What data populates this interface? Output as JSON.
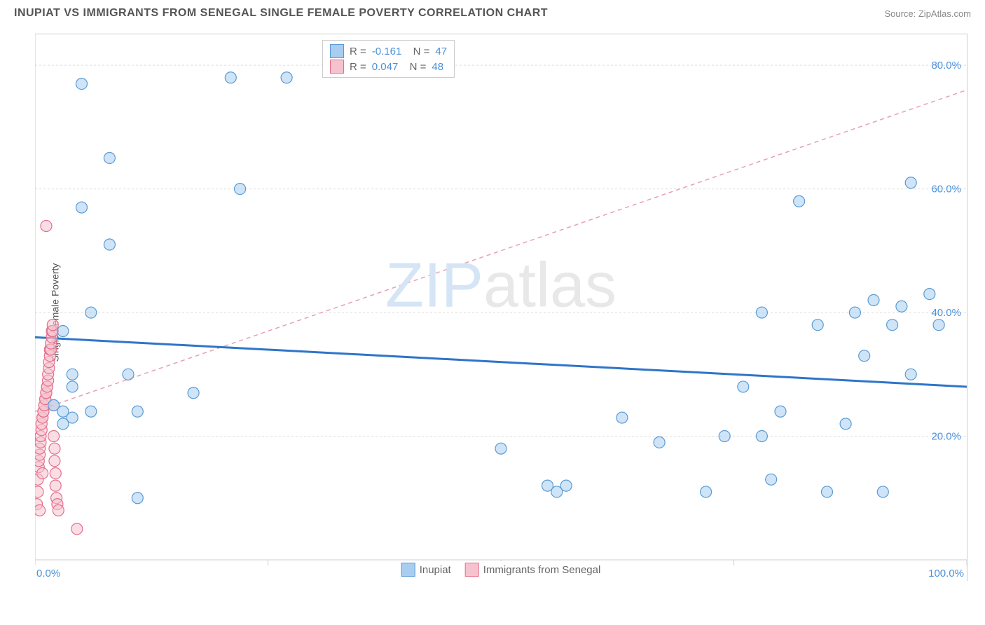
{
  "title": "INUPIAT VS IMMIGRANTS FROM SENEGAL SINGLE FEMALE POVERTY CORRELATION CHART",
  "source": "Source: ZipAtlas.com",
  "ylabel": "Single Female Poverty",
  "watermark_a": "ZIP",
  "watermark_b": "atlas",
  "chart": {
    "type": "scatter",
    "xlim": [
      0,
      100
    ],
    "ylim": [
      0,
      85
    ],
    "x_ticks": [
      0,
      25,
      50,
      75,
      100
    ],
    "x_tick_labels": [
      "0.0%",
      "",
      "",
      "",
      "100.0%"
    ],
    "y_gridlines": [
      20,
      40,
      60,
      80
    ],
    "y_tick_labels": [
      "20.0%",
      "40.0%",
      "60.0%",
      "80.0%"
    ],
    "grid_color": "#dddddd",
    "axis_color": "#cccccc",
    "background": "#ffffff",
    "marker_radius": 8,
    "marker_opacity": 0.55,
    "series": [
      {
        "name": "Inupiat",
        "color_fill": "#a8cdf0",
        "color_stroke": "#5a9bd5",
        "r_value": "-0.161",
        "n_value": "47",
        "trend": {
          "y_at_x0": 36,
          "y_at_x100": 28,
          "stroke": "#2e75c9",
          "width": 3,
          "dash": ""
        },
        "points": [
          [
            2,
            25
          ],
          [
            3,
            22
          ],
          [
            3,
            24
          ],
          [
            3,
            37
          ],
          [
            4,
            23
          ],
          [
            4,
            28
          ],
          [
            4,
            30
          ],
          [
            5,
            57
          ],
          [
            5,
            77
          ],
          [
            6,
            24
          ],
          [
            6,
            40
          ],
          [
            8,
            51
          ],
          [
            8,
            65
          ],
          [
            10,
            30
          ],
          [
            11,
            10
          ],
          [
            11,
            24
          ],
          [
            17,
            27
          ],
          [
            21,
            78
          ],
          [
            22,
            60
          ],
          [
            27,
            78
          ],
          [
            50,
            18
          ],
          [
            55,
            12
          ],
          [
            56,
            11
          ],
          [
            57,
            12
          ],
          [
            63,
            23
          ],
          [
            67,
            19
          ],
          [
            72,
            11
          ],
          [
            74,
            20
          ],
          [
            76,
            28
          ],
          [
            78,
            40
          ],
          [
            78,
            20
          ],
          [
            79,
            13
          ],
          [
            80,
            24
          ],
          [
            82,
            58
          ],
          [
            84,
            38
          ],
          [
            85,
            11
          ],
          [
            87,
            22
          ],
          [
            88,
            40
          ],
          [
            89,
            33
          ],
          [
            90,
            42
          ],
          [
            91,
            11
          ],
          [
            92,
            38
          ],
          [
            93,
            41
          ],
          [
            94,
            30
          ],
          [
            94,
            61
          ],
          [
            96,
            43
          ],
          [
            97,
            38
          ]
        ]
      },
      {
        "name": "Immigrants from Senegal",
        "color_fill": "#f5c3cf",
        "color_stroke": "#e46f8b",
        "r_value": "0.047",
        "n_value": "48",
        "trend": {
          "y_at_x0": 24,
          "y_at_x100": 76,
          "stroke": "#e8a0b0",
          "width": 1.5,
          "dash": "6,5"
        },
        "points": [
          [
            0.2,
            9
          ],
          [
            0.3,
            11
          ],
          [
            0.3,
            13
          ],
          [
            0.4,
            15
          ],
          [
            0.4,
            16
          ],
          [
            0.5,
            17
          ],
          [
            0.5,
            18
          ],
          [
            0.6,
            19
          ],
          [
            0.6,
            20
          ],
          [
            0.7,
            21
          ],
          [
            0.7,
            22
          ],
          [
            0.8,
            23
          ],
          [
            0.8,
            23
          ],
          [
            0.9,
            24
          ],
          [
            0.9,
            24
          ],
          [
            1.0,
            25
          ],
          [
            1.0,
            25
          ],
          [
            1.1,
            26
          ],
          [
            1.1,
            26
          ],
          [
            1.2,
            27
          ],
          [
            1.2,
            27
          ],
          [
            1.3,
            28
          ],
          [
            1.3,
            28
          ],
          [
            1.4,
            29
          ],
          [
            1.4,
            30
          ],
          [
            1.5,
            31
          ],
          [
            1.5,
            32
          ],
          [
            1.6,
            33
          ],
          [
            1.6,
            34
          ],
          [
            1.7,
            34
          ],
          [
            1.7,
            35
          ],
          [
            1.8,
            36
          ],
          [
            1.8,
            37
          ],
          [
            1.9,
            37
          ],
          [
            1.9,
            38
          ],
          [
            2.0,
            25
          ],
          [
            2.0,
            20
          ],
          [
            2.1,
            18
          ],
          [
            2.1,
            16
          ],
          [
            2.2,
            14
          ],
          [
            2.2,
            12
          ],
          [
            2.3,
            10
          ],
          [
            2.4,
            9
          ],
          [
            2.5,
            8
          ],
          [
            4.5,
            5
          ],
          [
            0.5,
            8
          ],
          [
            1.2,
            54
          ],
          [
            0.8,
            14
          ]
        ]
      }
    ]
  },
  "legend": {
    "series1_label": "Inupiat",
    "series2_label": "Immigrants from Senegal"
  },
  "xaxis": {
    "left_label": "0.0%",
    "right_label": "100.0%"
  }
}
